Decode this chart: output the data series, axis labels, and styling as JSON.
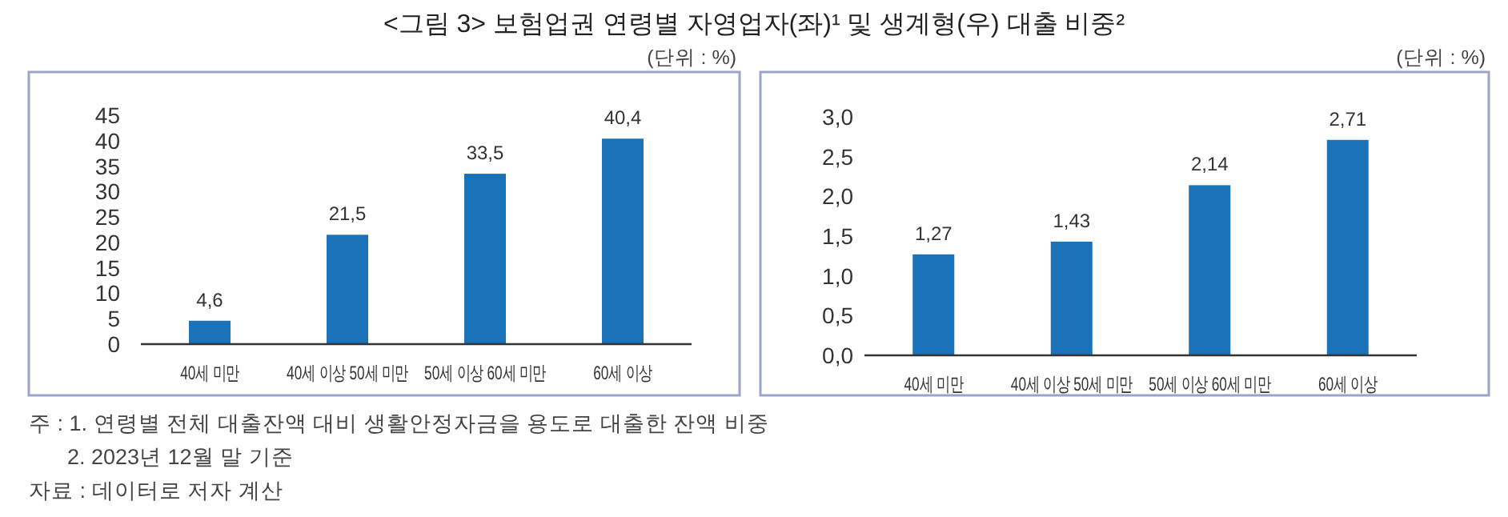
{
  "chart_data": [
    {
      "type": "bar",
      "title": "<그림 3> 보험업권 연령별 자영업자(좌)¹ 및 생계형(우) 대출 비중²",
      "subtitle": "(단위 : %)",
      "categories": [
        "40세 미만",
        "40세 이상 50세 미만",
        "50세 이상 60세 미만",
        "60세 이상"
      ],
      "values": [
        4.6,
        21.5,
        33.5,
        40.4
      ],
      "value_labels": [
        "4,6",
        "21,5",
        "33,5",
        "40,4"
      ],
      "color": "#1a73b8",
      "ylim": [
        0,
        45
      ],
      "yticks": [
        0,
        5,
        10,
        15,
        20,
        25,
        30,
        35,
        40,
        45
      ],
      "annotations": [
        "주 : 1. 연령별 전체 대출잔액 대비 생활안정자금을 용도로 대출한 잔액 비중",
        "2. 2023년 12월 말 기준",
        "자료 : 데이터로 저자 계산"
      ]
    },
    {
      "type": "bar",
      "subtitle": "(단위 : %)",
      "categories": [
        "40세 미만",
        "40세 이상 50세 미만",
        "50세 이상 60세 미만",
        "60세 이상"
      ],
      "values": [
        1.27,
        1.43,
        2.14,
        2.71
      ],
      "value_labels": [
        "1,27",
        "1,43",
        "2,14",
        "2,71"
      ],
      "color": "#1a73b8",
      "ylim": [
        0,
        3
      ],
      "yticks": [
        {
          "value": 0,
          "label": "0,0"
        },
        {
          "value": 0.5,
          "label": "0,5"
        },
        {
          "value": 1,
          "label": "1,0"
        },
        {
          "value": 1.5,
          "label": "1,5"
        },
        {
          "value": 2,
          "label": "2,0"
        },
        {
          "value": 2.5,
          "label": "2,5"
        },
        {
          "value": 3,
          "label": "3,0"
        }
      ]
    }
  ]
}
